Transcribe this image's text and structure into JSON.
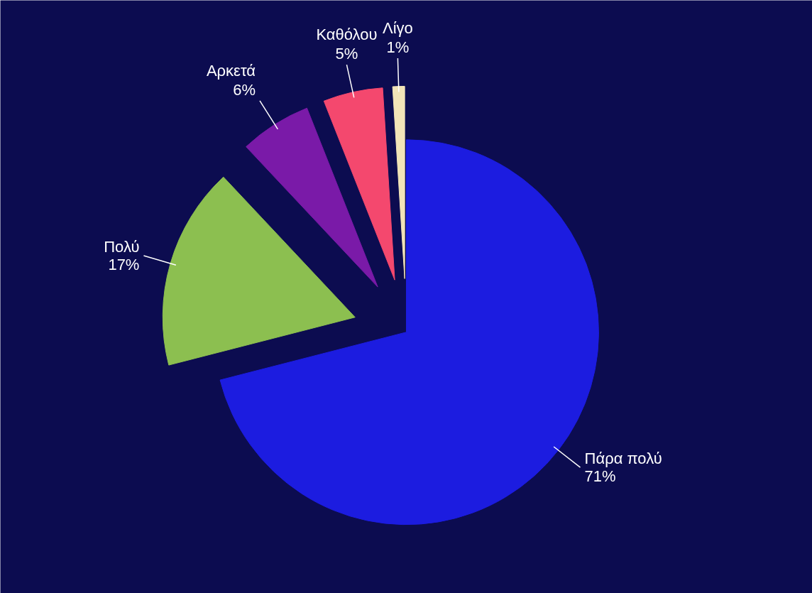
{
  "chart_data": {
    "type": "pie",
    "categories": [
      "Πάρα πολύ",
      "Πολύ",
      "Αρκετά",
      "Καθόλου",
      "Λίγο"
    ],
    "values": [
      71,
      17,
      6,
      5,
      1
    ],
    "value_labels": [
      "71%",
      "17%",
      "6%",
      "5%",
      "1%"
    ],
    "colors": [
      "#1c1ce0",
      "#8cbf50",
      "#7a1aa8",
      "#f4486e",
      "#f2e4b8"
    ]
  }
}
